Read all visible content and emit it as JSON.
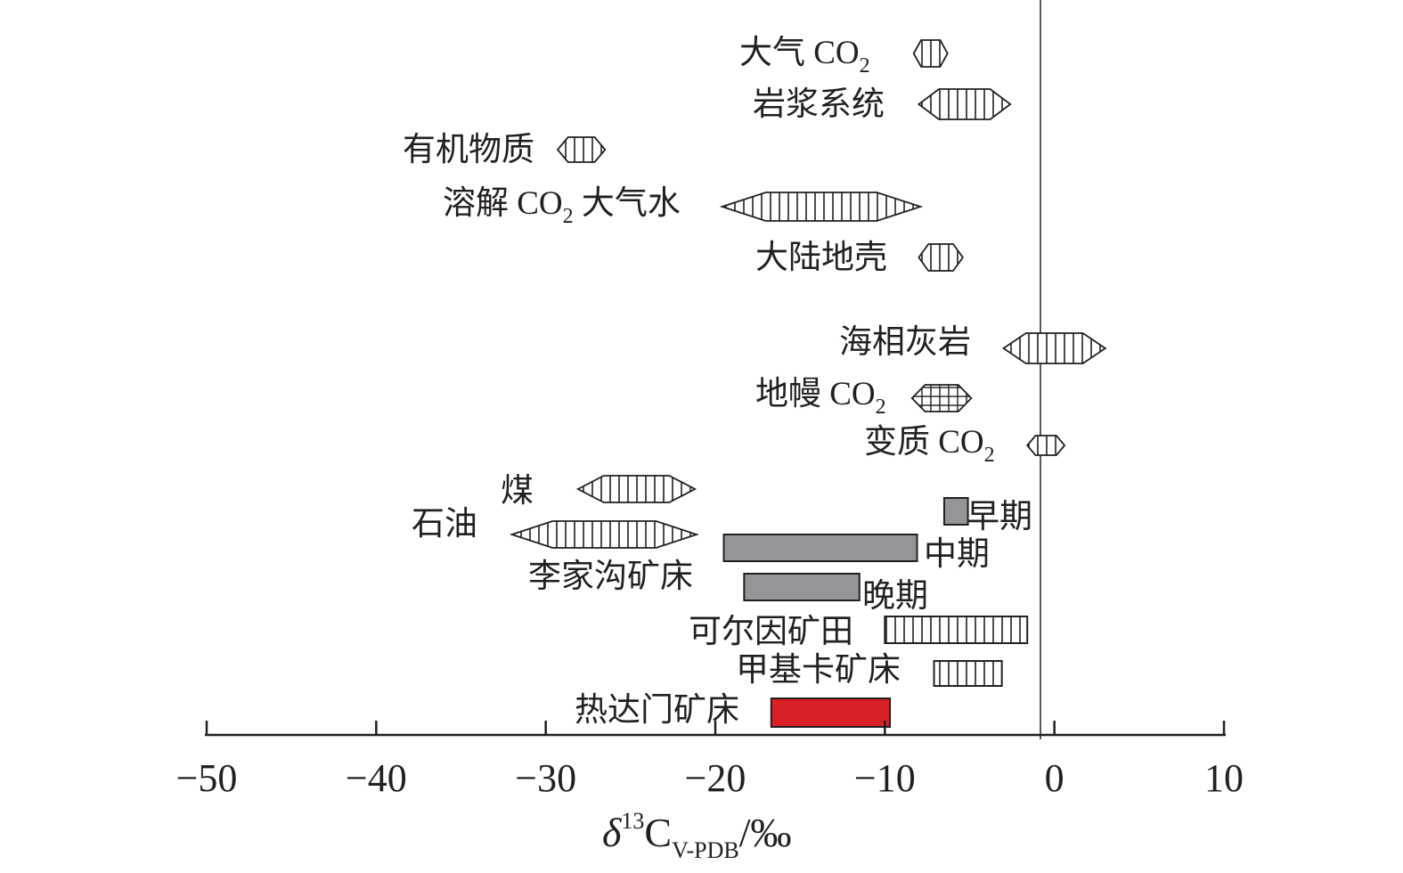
{
  "chart_data": {
    "type": "range",
    "xlabel": {
      "delta": "δ",
      "sup": "13",
      "main": "C",
      "sub": "V-PDB",
      "unit": "/‰"
    },
    "xlim": [
      -50,
      10
    ],
    "xticks": [
      "−50",
      "−40",
      "−30",
      "−20",
      "−10",
      "0",
      "10"
    ],
    "reference_line": 0,
    "reservoirs": [
      {
        "label": "大气 CO",
        "sub": "2",
        "range": [
          -8.3,
          -6.3
        ]
      },
      {
        "label": "岩浆系统",
        "range": [
          -8.0,
          -2.6
        ]
      },
      {
        "label": "有机物质",
        "range": [
          -29.3,
          -26.5
        ]
      },
      {
        "label": "溶解 CO",
        "sub": "2",
        "after": " 大气水",
        "range": [
          -19.6,
          -7.9
        ]
      },
      {
        "label": "大陆地壳",
        "range": [
          -8.0,
          -5.4
        ]
      },
      {
        "label": "海相灰岩",
        "range": [
          -3.0,
          3.0
        ]
      },
      {
        "label": "地幔 CO",
        "sub": "2",
        "range": [
          -8.4,
          -4.9
        ]
      },
      {
        "label": "变质 CO",
        "sub": "2",
        "range": [
          -1.6,
          0.6
        ]
      },
      {
        "label": "煤",
        "range": [
          -28.1,
          -21.2
        ]
      },
      {
        "label": "石油",
        "range": [
          -32.0,
          -21.1
        ]
      }
    ],
    "deposits": [
      {
        "label": "早期",
        "range": [
          -6.5,
          -5.1
        ],
        "style": "gray"
      },
      {
        "label": "中期",
        "range": [
          -19.5,
          -8.1
        ],
        "style": "gray"
      },
      {
        "label": "李家沟矿床",
        "style": "group-label"
      },
      {
        "label": "晚期",
        "range": [
          -18.3,
          -11.5
        ],
        "style": "gray"
      },
      {
        "label": "可尔因矿田",
        "range": [
          -10.0,
          -1.6
        ],
        "style": "hatched"
      },
      {
        "label": "甲基卡矿床",
        "range": [
          -7.1,
          -3.1
        ],
        "style": "hatched"
      },
      {
        "label": "热达门矿床",
        "range": [
          -16.7,
          -9.7
        ],
        "style": "red"
      }
    ],
    "colors": {
      "gray": "#939598",
      "red": "#d92027",
      "ink": "#231f20"
    }
  }
}
